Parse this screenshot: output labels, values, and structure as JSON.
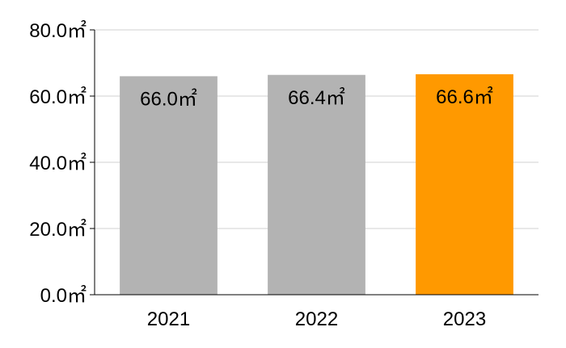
{
  "chart_data": {
    "type": "bar",
    "categories": [
      "2021",
      "2022",
      "2023"
    ],
    "values": [
      66.0,
      66.4,
      66.6
    ],
    "data_labels": [
      "66.0㎡",
      "66.4㎡",
      "66.6㎡"
    ],
    "bar_colors": [
      "#b3b3b3",
      "#b3b3b3",
      "#ff9900"
    ],
    "title": "",
    "xlabel": "",
    "ylabel": "",
    "ylim": [
      0,
      80
    ],
    "yticks": [
      0,
      20,
      40,
      60,
      80
    ],
    "ytick_labels": [
      "0.0㎡",
      "20.0㎡",
      "40.0㎡",
      "60.0㎡",
      "80.0㎡"
    ],
    "grid": true,
    "legend": "none"
  }
}
